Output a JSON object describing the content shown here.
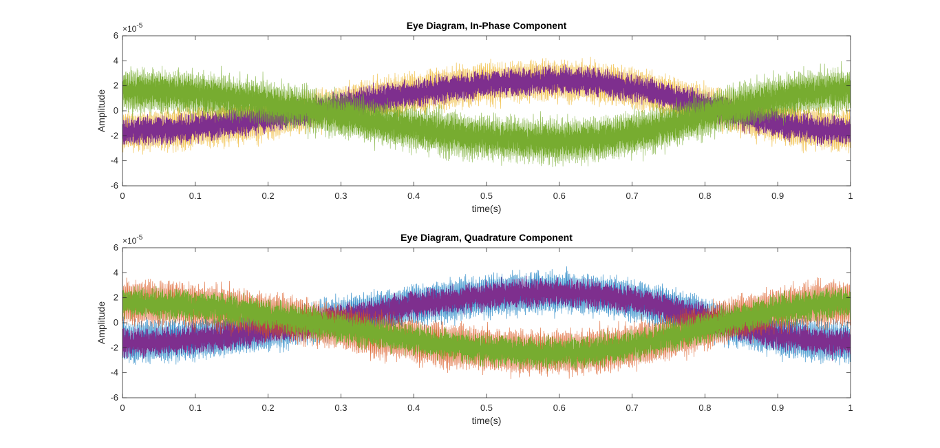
{
  "chart_data": [
    {
      "type": "line",
      "title": "Eye Diagram, In-Phase Component",
      "xlabel": "time(s)",
      "ylabel": "Amplitude",
      "exponent_label": "×10",
      "exponent_power": "-5",
      "xlim": [
        0,
        1
      ],
      "ylim": [
        -6,
        6
      ],
      "xticks": [
        "0",
        "0.1",
        "0.2",
        "0.3",
        "0.4",
        "0.5",
        "0.6",
        "0.7",
        "0.8",
        "0.9",
        "1"
      ],
      "yticks": [
        "-6",
        "-4",
        "-2",
        "0",
        "2",
        "4",
        "6"
      ],
      "grid": false,
      "series_colors": [
        "#0072bd",
        "#d95319",
        "#edb120",
        "#7e2f8e",
        "#77ac30"
      ],
      "traces": [
        {
          "color": "#7e2f8e",
          "center_x": [
            0,
            0.6,
            1
          ],
          "center_y": [
            -1.6,
            2.4,
            -1.6
          ],
          "half_width": 1.1,
          "noise": 1.0,
          "edge_noise_color": "#edb120"
        },
        {
          "color": "#77ac30",
          "center_x": [
            0,
            0.6,
            1
          ],
          "center_y": [
            1.6,
            -2.4,
            1.6
          ],
          "half_width": 1.2,
          "noise": 1.2,
          "edge_noise_color": "#77ac30"
        }
      ]
    },
    {
      "type": "line",
      "title": "Eye Diagram, Quadrature Component",
      "xlabel": "time(s)",
      "ylabel": "Amplitude",
      "exponent_label": "×10",
      "exponent_power": "-5",
      "xlim": [
        0,
        1
      ],
      "ylim": [
        -6,
        6
      ],
      "xticks": [
        "0",
        "0.1",
        "0.2",
        "0.3",
        "0.4",
        "0.5",
        "0.6",
        "0.7",
        "0.8",
        "0.9",
        "1"
      ],
      "yticks": [
        "-6",
        "-4",
        "-2",
        "0",
        "2",
        "4",
        "6"
      ],
      "grid": false,
      "series_colors": [
        "#0072bd",
        "#d95319",
        "#edb120",
        "#7e2f8e",
        "#77ac30"
      ],
      "traces": [
        {
          "color": "#7e2f8e",
          "center_x": [
            0,
            0.6,
            1
          ],
          "center_y": [
            -1.6,
            2.4,
            -1.6
          ],
          "half_width": 1.1,
          "noise": 1.0,
          "edge_noise_color": "#0072bd"
        },
        {
          "color": "#77ac30",
          "center_x": [
            0,
            0.6,
            1
          ],
          "center_y": [
            1.6,
            -2.4,
            1.6
          ],
          "half_width": 1.2,
          "noise": 1.1,
          "edge_noise_color": "#d95319"
        }
      ]
    }
  ]
}
